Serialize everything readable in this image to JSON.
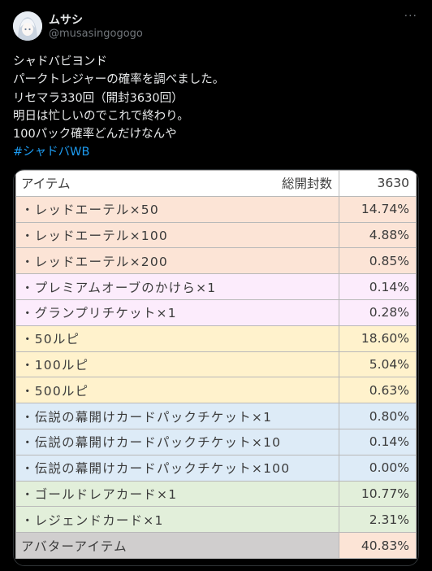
{
  "post": {
    "display_name": "ムサシ",
    "handle": "@musasingogogo",
    "more_icon": "ellipsis-icon",
    "text_lines": [
      "シャドバビヨンド",
      "パークトレジャーの確率を調べました。",
      "リセマラ330回（開封3630回）",
      "明日は忙しいのでこれで終わり。",
      "100パック確率どんだけなんや"
    ],
    "hashtag": "#シャドバWB"
  },
  "table": {
    "header": {
      "item": "アイテム",
      "total_label": "総開封数",
      "total_value": "3630"
    },
    "rows": [
      {
        "label": "・レッドエーテル×50",
        "pct": "14.74%",
        "color": "#fce4d6"
      },
      {
        "label": "・レッドエーテル×100",
        "pct": "4.88%",
        "color": "#fce4d6"
      },
      {
        "label": "・レッドエーテル×200",
        "pct": "0.85%",
        "color": "#fce4d6"
      },
      {
        "label": "・プレミアムオーブのかけら×1",
        "pct": "0.14%",
        "color": "#fcecfc"
      },
      {
        "label": "・グランプリチケット×1",
        "pct": "0.28%",
        "color": "#fcecfc"
      },
      {
        "label": "・50ルピ",
        "pct": "18.60%",
        "color": "#fff2cc"
      },
      {
        "label": "・100ルピ",
        "pct": "5.04%",
        "color": "#fff2cc"
      },
      {
        "label": "・500ルピ",
        "pct": "0.63%",
        "color": "#fff2cc"
      },
      {
        "label": "・伝説の幕開けカードパックチケット×1",
        "pct": "0.80%",
        "color": "#ddebf7"
      },
      {
        "label": "・伝説の幕開けカードパックチケット×10",
        "pct": "0.14%",
        "color": "#ddebf7"
      },
      {
        "label": "・伝説の幕開けカードパックチケット×100",
        "pct": "0.00%",
        "color": "#ddebf7"
      },
      {
        "label": "・ゴールドレアカード×1",
        "pct": "10.77%",
        "color": "#e2efda"
      },
      {
        "label": "・レジェンドカード×1",
        "pct": "2.31%",
        "color": "#e2efda"
      },
      {
        "label": "アバターアイテム",
        "pct": "40.83%",
        "color": "#d0cece",
        "pct_color": "#fce4d6"
      }
    ]
  }
}
